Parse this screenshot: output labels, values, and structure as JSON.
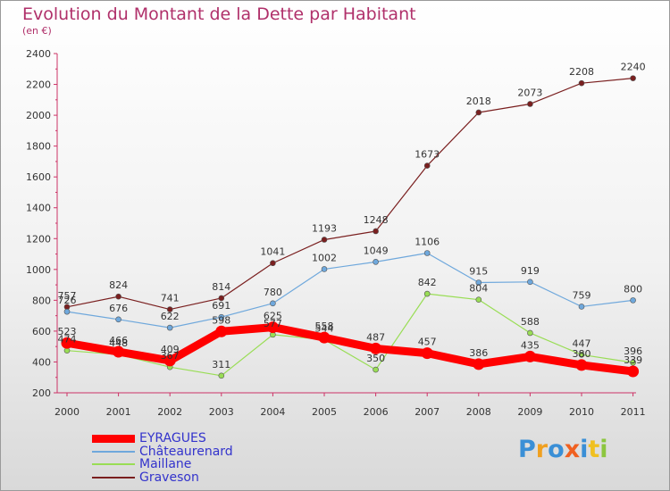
{
  "header": {
    "title": "Evolution du Montant de la Dette par Habitant",
    "subtitle": "(en €)"
  },
  "logo": {
    "text": "Proxiti",
    "colors": [
      "#3a8fd6",
      "#f0a020",
      "#3a8fd6",
      "#f06020",
      "#3a8fd6",
      "#f0c020",
      "#8cc63f"
    ]
  },
  "chart_data": {
    "type": "line",
    "x": [
      "2000",
      "2001",
      "2002",
      "2003",
      "2004",
      "2005",
      "2006",
      "2007",
      "2008",
      "2009",
      "2010",
      "2011"
    ],
    "ylim": [
      200,
      2400
    ],
    "yticks": [
      "200",
      "400",
      "600",
      "800",
      "1000",
      "1200",
      "1400",
      "1600",
      "1800",
      "2000",
      "2200",
      "2400"
    ],
    "grid": false,
    "legend_position": "bottom-left",
    "series": [
      {
        "name": "EYRAGUES",
        "color": "#ff0000",
        "text_color": "#3333cc",
        "values": [
          523,
          466,
          409,
          598,
          625,
          558,
          487,
          457,
          386,
          435,
          380,
          339
        ]
      },
      {
        "name": "Châteaurenard",
        "color": "#6fa8dc",
        "text_color": "#3333cc",
        "values": [
          726,
          676,
          622,
          691,
          780,
          1002,
          1049,
          1106,
          915,
          919,
          759,
          800
        ]
      },
      {
        "name": "Maillane",
        "color": "#99dd55",
        "text_color": "#3333cc",
        "values": [
          474,
          448,
          367,
          311,
          577,
          544,
          350,
          842,
          804,
          588,
          447,
          396
        ]
      },
      {
        "name": "Graveson",
        "color": "#7a1f1f",
        "text_color": "#3333cc",
        "values": [
          757,
          824,
          741,
          814,
          1041,
          1193,
          1248,
          1673,
          2018,
          2073,
          2208,
          2240
        ]
      }
    ]
  }
}
